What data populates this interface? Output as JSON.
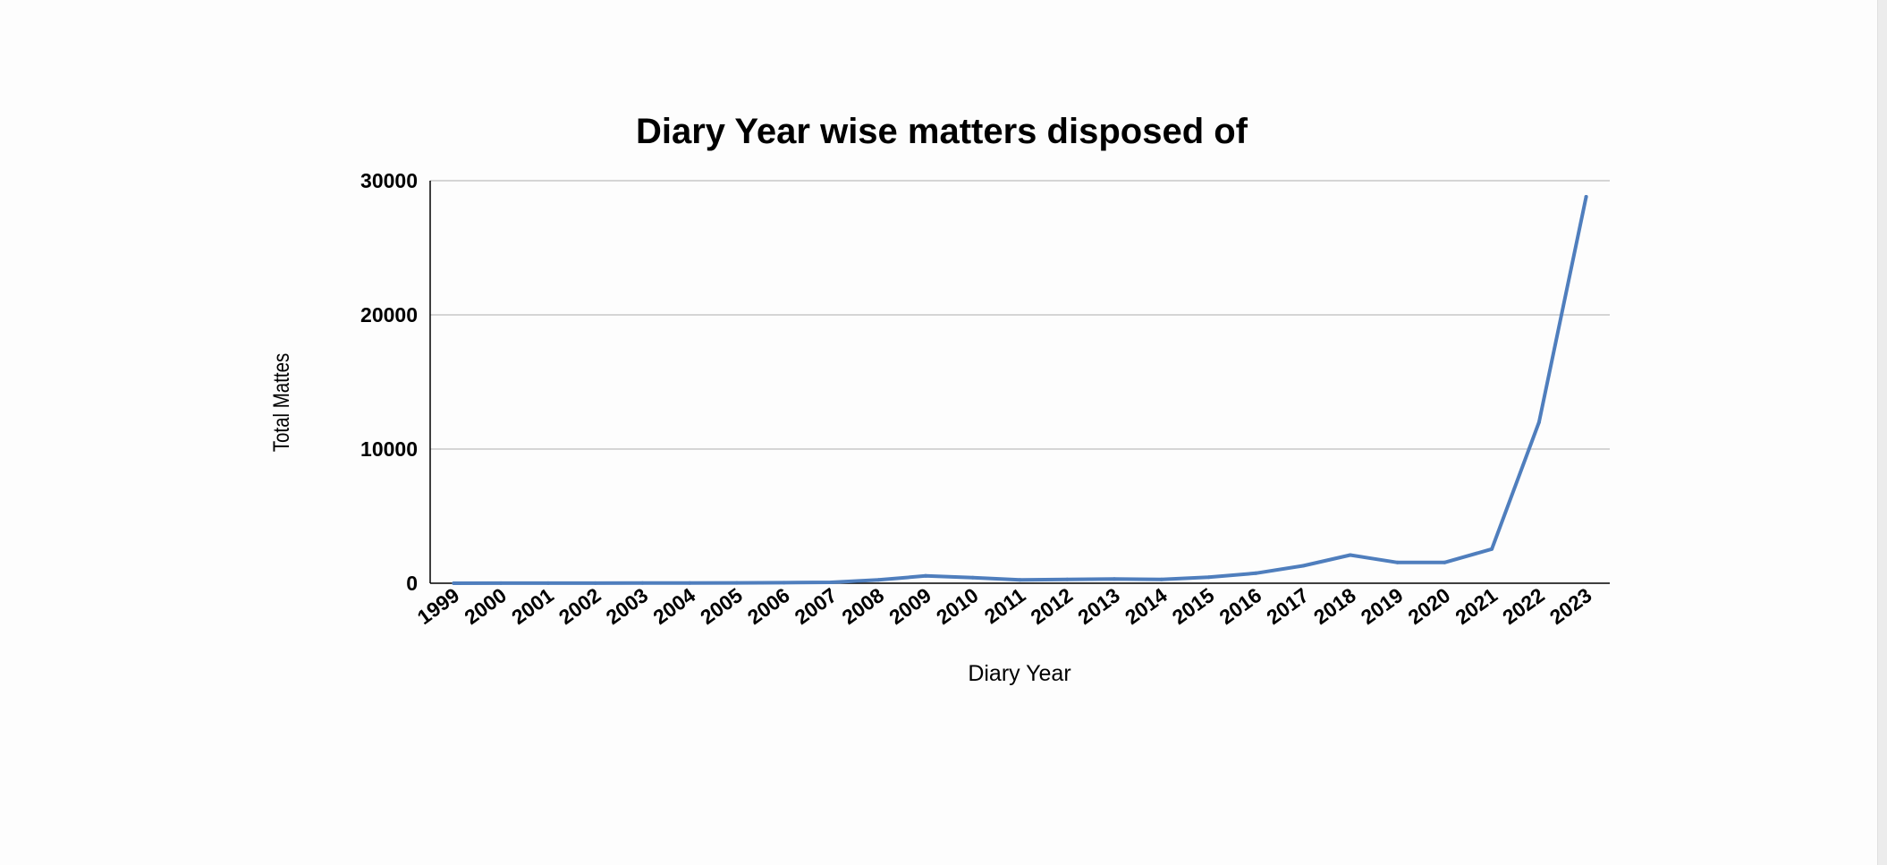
{
  "chart_data": {
    "type": "line",
    "title": "Diary Year wise matters disposed of",
    "xlabel": "Diary Year",
    "ylabel": "Total Mattes",
    "categories": [
      "1999",
      "2000",
      "2001",
      "2002",
      "2003",
      "2004",
      "2005",
      "2006",
      "2007",
      "2008",
      "2009",
      "2010",
      "2011",
      "2012",
      "2013",
      "2014",
      "2015",
      "2016",
      "2017",
      "2018",
      "2019",
      "2020",
      "2021",
      "2022",
      "2023"
    ],
    "series": [
      {
        "values": [
          2,
          5,
          8,
          10,
          12,
          15,
          25,
          40,
          70,
          250,
          550,
          420,
          250,
          280,
          320,
          280,
          450,
          750,
          1300,
          2100,
          1550,
          1550,
          2550,
          12000,
          28800
        ]
      }
    ],
    "ylim": [
      0,
      30000
    ],
    "yticks": [
      0,
      10000,
      20000,
      30000
    ],
    "grid": true,
    "legend": "none",
    "colors": {
      "line": "#4f7ebd",
      "grid": "#c8c8c8",
      "axis": "#000000"
    }
  }
}
